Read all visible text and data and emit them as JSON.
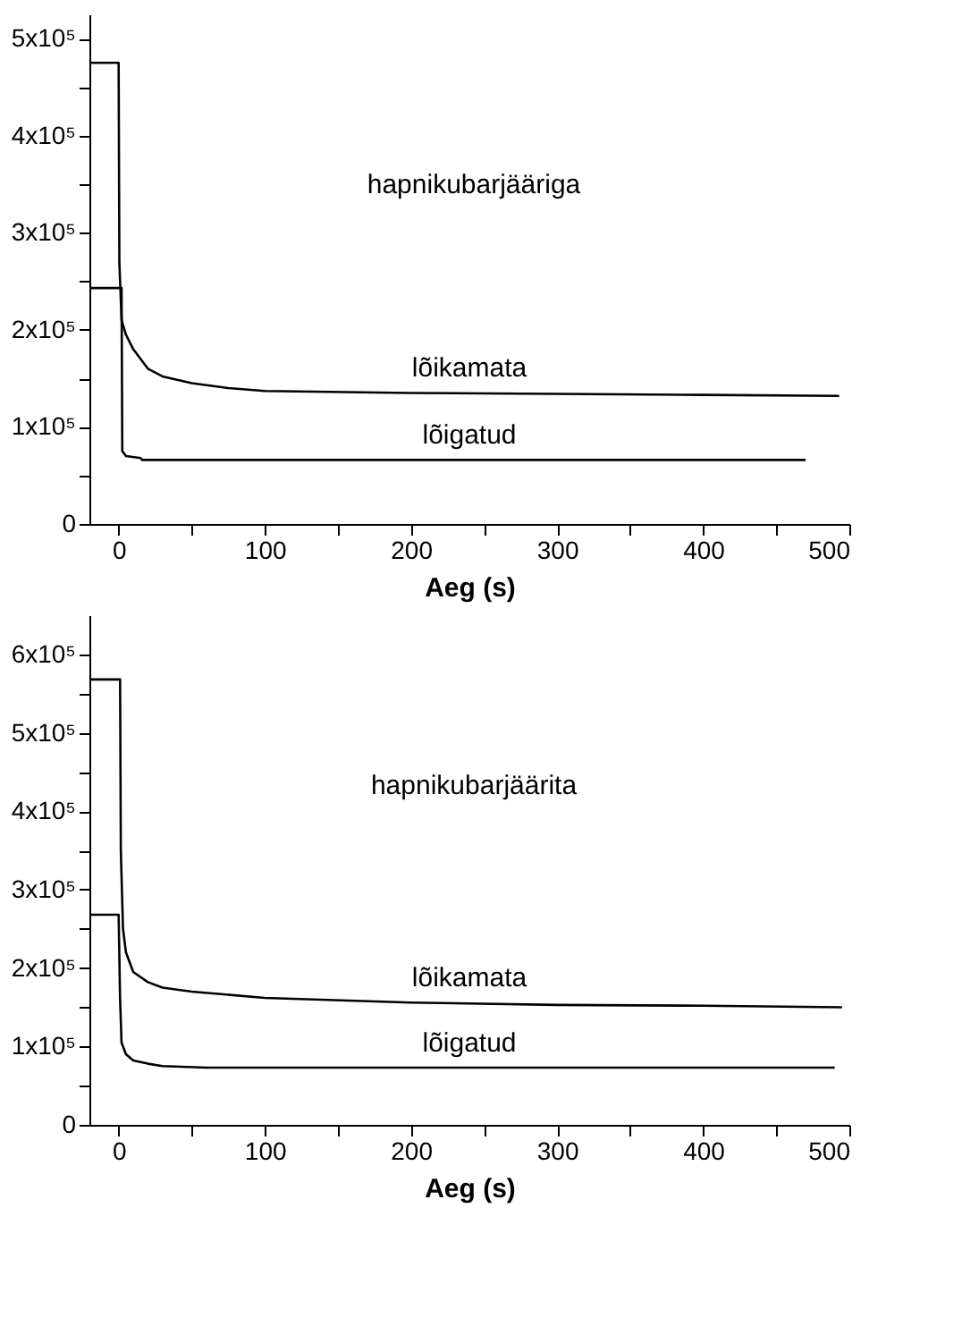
{
  "chart_data": [
    {
      "type": "line",
      "xlabel": "Aeg (s)",
      "annotations": [
        "hapnikubarjääriga"
      ],
      "xlim": [
        -20,
        500
      ],
      "ylim": [
        0,
        525000
      ],
      "xticks": [
        0,
        {
          "value": 50,
          "label": null
        },
        100,
        {
          "value": 150,
          "label": null
        },
        200,
        {
          "value": 250,
          "label": null
        },
        300,
        {
          "value": 350,
          "label": null
        },
        400,
        {
          "value": 450,
          "label": null
        },
        500
      ],
      "yticks": [
        0,
        {
          "value": 50000,
          "label": null
        },
        {
          "value": 100000,
          "label": "1x10⁵"
        },
        {
          "value": 150000,
          "label": null
        },
        {
          "value": 200000,
          "label": "2x10⁵"
        },
        {
          "value": 250000,
          "label": null
        },
        {
          "value": 300000,
          "label": "3x10⁵"
        },
        {
          "value": 350000,
          "label": null
        },
        {
          "value": 400000,
          "label": "4x10⁵"
        },
        {
          "value": 450000,
          "label": null
        },
        {
          "value": 500000,
          "label": "5x10⁵"
        }
      ],
      "grid": false,
      "legend": false,
      "series": [
        {
          "name": "lõikamata",
          "color": "#000000",
          "x": [
            -20,
            0,
            0.5,
            2,
            5,
            10,
            20,
            30,
            50,
            75,
            100,
            200,
            300,
            400,
            493
          ],
          "values": [
            475000,
            475000,
            270000,
            210000,
            195000,
            180000,
            160000,
            152000,
            145000,
            140000,
            137000,
            135000,
            134000,
            133000,
            132000
          ]
        },
        {
          "name": "lõigatud",
          "color": "#000000",
          "x": [
            -20,
            2,
            2.5,
            5,
            15,
            16,
            470
          ],
          "values": [
            243000,
            243000,
            75000,
            70000,
            68000,
            66000,
            66000
          ]
        }
      ]
    },
    {
      "type": "line",
      "xlabel": "Aeg (s)",
      "annotations": [
        "hapnikubarjäärita"
      ],
      "xlim": [
        -20,
        500
      ],
      "ylim": [
        0,
        650000
      ],
      "xticks": [
        0,
        {
          "value": 50,
          "label": null
        },
        100,
        {
          "value": 150,
          "label": null
        },
        200,
        {
          "value": 250,
          "label": null
        },
        300,
        {
          "value": 350,
          "label": null
        },
        400,
        {
          "value": 450,
          "label": null
        },
        500
      ],
      "yticks": [
        0,
        {
          "value": 50000,
          "label": null
        },
        {
          "value": 100000,
          "label": "1x10⁵"
        },
        {
          "value": 150000,
          "label": null
        },
        {
          "value": 200000,
          "label": "2x10⁵"
        },
        {
          "value": 250000,
          "label": null
        },
        {
          "value": 300000,
          "label": "3x10⁵"
        },
        {
          "value": 350000,
          "label": null
        },
        {
          "value": 400000,
          "label": "4x10⁵"
        },
        {
          "value": 450000,
          "label": null
        },
        {
          "value": 500000,
          "label": "5x10⁵"
        },
        {
          "value": 550000,
          "label": null
        },
        {
          "value": 600000,
          "label": "6x10⁵"
        }
      ],
      "grid": false,
      "legend": false,
      "series": [
        {
          "name": "lõikamata",
          "color": "#000000",
          "x": [
            -20,
            1,
            1.5,
            3,
            5,
            10,
            20,
            30,
            50,
            100,
            200,
            300,
            400,
            495
          ],
          "values": [
            568000,
            568000,
            350000,
            250000,
            220000,
            195000,
            182000,
            175000,
            170000,
            162000,
            156000,
            153000,
            152000,
            150000
          ]
        },
        {
          "name": "lõigatud",
          "color": "#000000",
          "x": [
            -20,
            0,
            1,
            2,
            5,
            10,
            20,
            30,
            60,
            490
          ],
          "values": [
            268000,
            268000,
            160000,
            105000,
            90000,
            82000,
            78000,
            75000,
            73000,
            73000
          ]
        }
      ]
    }
  ]
}
